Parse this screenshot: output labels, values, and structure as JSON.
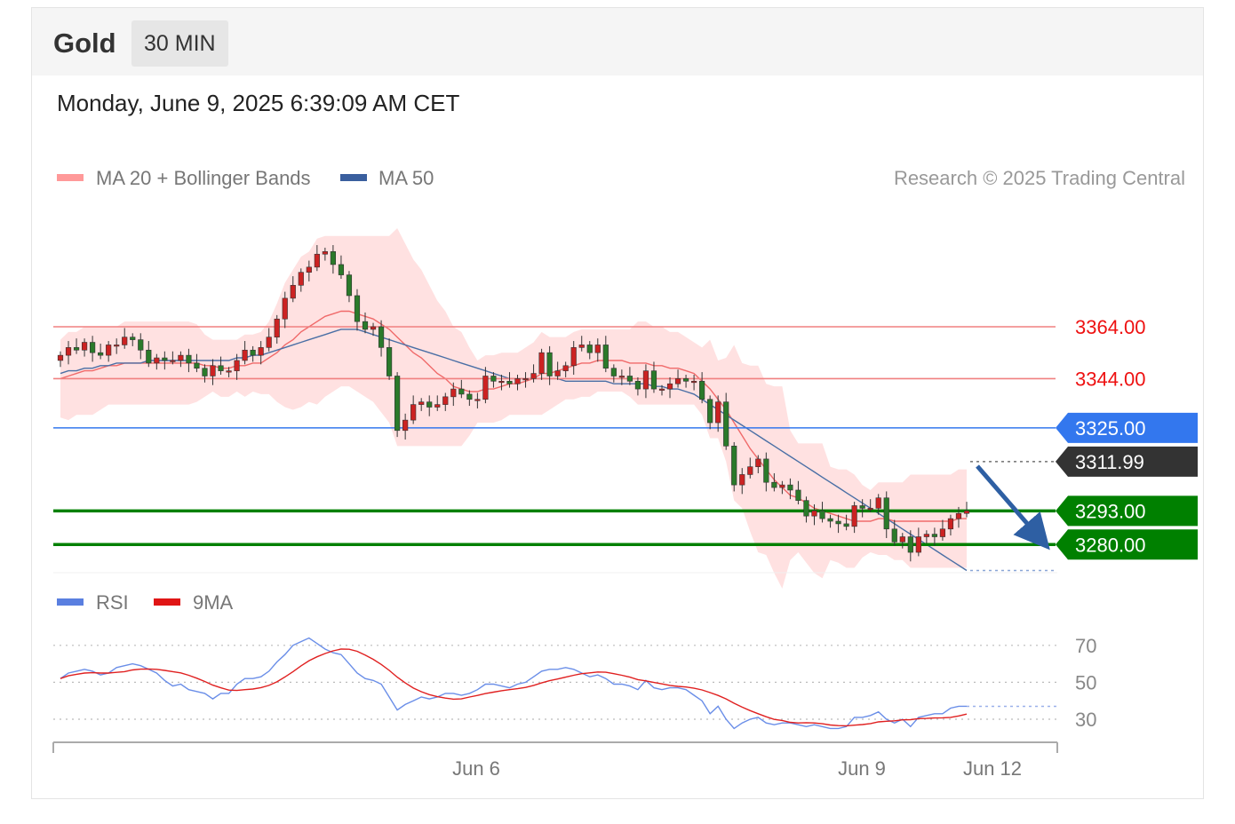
{
  "header": {
    "instrument": "Gold",
    "interval": "30 MIN",
    "timestamp": "Monday, June 9, 2025 6:39:09 AM CET"
  },
  "legend": {
    "ma20_label": "MA 20 + Bollinger Bands",
    "ma50_label": "MA 50",
    "rsi_label": "RSI",
    "rsi_ma_label": "9MA",
    "copyright": "Research © 2025 Trading Central"
  },
  "colors": {
    "resistance": "#f08080",
    "resistance_text": "#ee1111",
    "pivot": "#3377ee",
    "support": "#008000",
    "current": "#333333",
    "bullish_candle": "#cc2222",
    "bearish_candle": "#2a7a2a",
    "bollinger_fill": "#ffdcdc",
    "ma20": "#f06a6a",
    "ma50": "#4a6fa5",
    "rsi": "#6a8ee8",
    "rsi_ma": "#e02020",
    "arrow": "#2e5fa3"
  },
  "chart_data": {
    "type": "candlestick",
    "price_levels": [
      {
        "name": "resistance-2",
        "value": 3364.0,
        "label": "3364.00",
        "kind": "resistance"
      },
      {
        "name": "resistance-1",
        "value": 3344.0,
        "label": "3344.00",
        "kind": "resistance"
      },
      {
        "name": "pivot",
        "value": 3325.0,
        "label": "3325.00",
        "kind": "pivot"
      },
      {
        "name": "current-price",
        "value": 3311.99,
        "label": "3311.99",
        "kind": "current"
      },
      {
        "name": "support-1",
        "value": 3293.0,
        "label": "3293.00",
        "kind": "support"
      },
      {
        "name": "support-2",
        "value": 3280.0,
        "label": "3280.00",
        "kind": "support"
      }
    ],
    "x_ticks": [
      "Jun 6",
      "Jun 9",
      "Jun 12"
    ],
    "rsi_ticks": [
      "70",
      "50",
      "30"
    ],
    "closes": [
      3353,
      3356,
      3355,
      3358,
      3354,
      3353,
      3357,
      3357,
      3360,
      3359,
      3355,
      3350,
      3352,
      3351,
      3351,
      3353,
      3350,
      3348,
      3345,
      3349,
      3347,
      3347,
      3351,
      3355,
      3353,
      3356,
      3360,
      3367,
      3375,
      3380,
      3385,
      3387,
      3392,
      3393,
      3388,
      3384,
      3376,
      3366,
      3363,
      3364,
      3356,
      3345,
      3324,
      3328,
      3334,
      3335,
      3333,
      3334,
      3337,
      3340,
      3338,
      3336,
      3336,
      3345,
      3343,
      3343,
      3342,
      3344,
      3344,
      3346,
      3354,
      3345,
      3347,
      3349,
      3356,
      3357,
      3354,
      3357,
      3348,
      3345,
      3345,
      3343,
      3340,
      3347,
      3340,
      3340,
      3342,
      3344,
      3343,
      3343,
      3336,
      3327,
      3335,
      3318,
      3303,
      3307,
      3310,
      3313,
      3304,
      3302,
      3303,
      3301,
      3297,
      3291,
      3293,
      3290,
      3289,
      3288,
      3287,
      3295,
      3294,
      3294,
      3298,
      3286,
      3281,
      3283,
      3277,
      3283,
      3284,
      3283,
      3286,
      3290,
      3292,
      3293
    ],
    "rsi": [
      52,
      55,
      56,
      57,
      56,
      54,
      55,
      58,
      59,
      60,
      59,
      57,
      55,
      51,
      48,
      49,
      46,
      45,
      44,
      41,
      44,
      44,
      49,
      52,
      52,
      53,
      56,
      61,
      65,
      70,
      72,
      74,
      71,
      68,
      66,
      65,
      60,
      55,
      52,
      51,
      49,
      42,
      35,
      38,
      40,
      42,
      41,
      42,
      44,
      44,
      43,
      44,
      46,
      49,
      49,
      48,
      47,
      49,
      50,
      53,
      56,
      57,
      57,
      58,
      57,
      55,
      53,
      54,
      52,
      49,
      49,
      48,
      46,
      51,
      47,
      46,
      47,
      47,
      46,
      43,
      40,
      33,
      37,
      30,
      25,
      28,
      30,
      31,
      28,
      27,
      28,
      28,
      27,
      26,
      27,
      26,
      25,
      25,
      26,
      31,
      31,
      32,
      34,
      30,
      28,
      30,
      26,
      31,
      32,
      33,
      33,
      36,
      37,
      37
    ],
    "ma20": [
      3344,
      3345,
      3346,
      3347,
      3347,
      3348,
      3349,
      3349,
      3350,
      3350,
      3350,
      3350,
      3350,
      3350,
      3350,
      3350,
      3350,
      3350,
      3349,
      3349,
      3348,
      3348,
      3349,
      3349,
      3350,
      3350,
      3352,
      3354,
      3357,
      3359,
      3362,
      3364,
      3366,
      3368,
      3369,
      3370,
      3370,
      3369,
      3368,
      3367,
      3365,
      3363,
      3360,
      3357,
      3354,
      3352,
      3349,
      3346,
      3344,
      3341,
      3340,
      3339,
      3339,
      3340,
      3340,
      3341,
      3342,
      3342,
      3343,
      3344,
      3346,
      3346,
      3347,
      3348,
      3349,
      3350,
      3350,
      3351,
      3351,
      3351,
      3351,
      3350,
      3350,
      3350,
      3349,
      3349,
      3348,
      3348,
      3347,
      3346,
      3343,
      3340,
      3336,
      3332,
      3327,
      3322,
      3317,
      3313,
      3309,
      3305,
      3302,
      3299,
      3298,
      3296,
      3294,
      3293,
      3292,
      3291,
      3290,
      3289,
      3289,
      3289,
      3290,
      3290,
      3289,
      3289,
      3289,
      3289,
      3289,
      3289,
      3289,
      3289,
      3290,
      3290
    ],
    "ma50": [
      3346,
      3347,
      3347,
      3348,
      3348,
      3349,
      3349,
      3350,
      3350,
      3350,
      3350,
      3351,
      3351,
      3351,
      3351,
      3351,
      3351,
      3351,
      3351,
      3351,
      3351,
      3351,
      3352,
      3352,
      3353,
      3353,
      3354,
      3355,
      3356,
      3357,
      3358,
      3359,
      3360,
      3361,
      3362,
      3363,
      3363,
      3363,
      3362,
      3361,
      3360,
      3359,
      3358,
      3357,
      3356,
      3355,
      3354,
      3353,
      3352,
      3351,
      3350,
      3349,
      3348,
      3347,
      3346,
      3345,
      3344,
      3344,
      3344,
      3344,
      3344,
      3344,
      3344,
      3343,
      3343,
      3343,
      3343,
      3343,
      3343,
      3342,
      3342,
      3342,
      3342,
      3342,
      3341,
      3341,
      3340,
      3340,
      3339,
      3338,
      3336,
      3334,
      3332,
      3330,
      3328,
      3326,
      3324,
      3322,
      3320,
      3318,
      3316,
      3314,
      3312,
      3310,
      3308,
      3306,
      3304,
      3302,
      3300,
      3298,
      3296,
      3294,
      3292,
      3290,
      3288,
      3286,
      3284,
      3282,
      3280,
      3278,
      3276,
      3274,
      3272,
      3270
    ]
  }
}
